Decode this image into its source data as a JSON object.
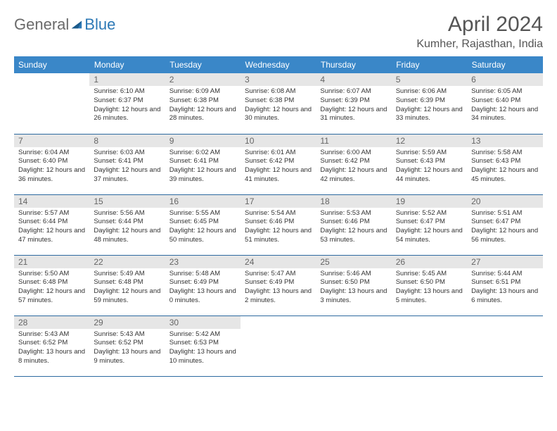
{
  "brand": {
    "part1": "General",
    "part2": "Blue"
  },
  "title": "April 2024",
  "location": "Kumher, Rajasthan, India",
  "colors": {
    "header_bg": "#3a87c8",
    "row_border": "#2d6aa0",
    "daynum_bg": "#e6e6e6",
    "text": "#333333",
    "title_text": "#555555",
    "logo_gray": "#6a6a6a",
    "logo_blue": "#2d79b6"
  },
  "weekdays": [
    "Sunday",
    "Monday",
    "Tuesday",
    "Wednesday",
    "Thursday",
    "Friday",
    "Saturday"
  ],
  "start_offset": 1,
  "days": [
    {
      "n": 1,
      "sr": "6:10 AM",
      "ss": "6:37 PM",
      "dl": "12 hours and 26 minutes."
    },
    {
      "n": 2,
      "sr": "6:09 AM",
      "ss": "6:38 PM",
      "dl": "12 hours and 28 minutes."
    },
    {
      "n": 3,
      "sr": "6:08 AM",
      "ss": "6:38 PM",
      "dl": "12 hours and 30 minutes."
    },
    {
      "n": 4,
      "sr": "6:07 AM",
      "ss": "6:39 PM",
      "dl": "12 hours and 31 minutes."
    },
    {
      "n": 5,
      "sr": "6:06 AM",
      "ss": "6:39 PM",
      "dl": "12 hours and 33 minutes."
    },
    {
      "n": 6,
      "sr": "6:05 AM",
      "ss": "6:40 PM",
      "dl": "12 hours and 34 minutes."
    },
    {
      "n": 7,
      "sr": "6:04 AM",
      "ss": "6:40 PM",
      "dl": "12 hours and 36 minutes."
    },
    {
      "n": 8,
      "sr": "6:03 AM",
      "ss": "6:41 PM",
      "dl": "12 hours and 37 minutes."
    },
    {
      "n": 9,
      "sr": "6:02 AM",
      "ss": "6:41 PM",
      "dl": "12 hours and 39 minutes."
    },
    {
      "n": 10,
      "sr": "6:01 AM",
      "ss": "6:42 PM",
      "dl": "12 hours and 41 minutes."
    },
    {
      "n": 11,
      "sr": "6:00 AM",
      "ss": "6:42 PM",
      "dl": "12 hours and 42 minutes."
    },
    {
      "n": 12,
      "sr": "5:59 AM",
      "ss": "6:43 PM",
      "dl": "12 hours and 44 minutes."
    },
    {
      "n": 13,
      "sr": "5:58 AM",
      "ss": "6:43 PM",
      "dl": "12 hours and 45 minutes."
    },
    {
      "n": 14,
      "sr": "5:57 AM",
      "ss": "6:44 PM",
      "dl": "12 hours and 47 minutes."
    },
    {
      "n": 15,
      "sr": "5:56 AM",
      "ss": "6:44 PM",
      "dl": "12 hours and 48 minutes."
    },
    {
      "n": 16,
      "sr": "5:55 AM",
      "ss": "6:45 PM",
      "dl": "12 hours and 50 minutes."
    },
    {
      "n": 17,
      "sr": "5:54 AM",
      "ss": "6:46 PM",
      "dl": "12 hours and 51 minutes."
    },
    {
      "n": 18,
      "sr": "5:53 AM",
      "ss": "6:46 PM",
      "dl": "12 hours and 53 minutes."
    },
    {
      "n": 19,
      "sr": "5:52 AM",
      "ss": "6:47 PM",
      "dl": "12 hours and 54 minutes."
    },
    {
      "n": 20,
      "sr": "5:51 AM",
      "ss": "6:47 PM",
      "dl": "12 hours and 56 minutes."
    },
    {
      "n": 21,
      "sr": "5:50 AM",
      "ss": "6:48 PM",
      "dl": "12 hours and 57 minutes."
    },
    {
      "n": 22,
      "sr": "5:49 AM",
      "ss": "6:48 PM",
      "dl": "12 hours and 59 minutes."
    },
    {
      "n": 23,
      "sr": "5:48 AM",
      "ss": "6:49 PM",
      "dl": "13 hours and 0 minutes."
    },
    {
      "n": 24,
      "sr": "5:47 AM",
      "ss": "6:49 PM",
      "dl": "13 hours and 2 minutes."
    },
    {
      "n": 25,
      "sr": "5:46 AM",
      "ss": "6:50 PM",
      "dl": "13 hours and 3 minutes."
    },
    {
      "n": 26,
      "sr": "5:45 AM",
      "ss": "6:50 PM",
      "dl": "13 hours and 5 minutes."
    },
    {
      "n": 27,
      "sr": "5:44 AM",
      "ss": "6:51 PM",
      "dl": "13 hours and 6 minutes."
    },
    {
      "n": 28,
      "sr": "5:43 AM",
      "ss": "6:52 PM",
      "dl": "13 hours and 8 minutes."
    },
    {
      "n": 29,
      "sr": "5:43 AM",
      "ss": "6:52 PM",
      "dl": "13 hours and 9 minutes."
    },
    {
      "n": 30,
      "sr": "5:42 AM",
      "ss": "6:53 PM",
      "dl": "13 hours and 10 minutes."
    }
  ],
  "labels": {
    "sunrise": "Sunrise:",
    "sunset": "Sunset:",
    "daylight": "Daylight:"
  }
}
